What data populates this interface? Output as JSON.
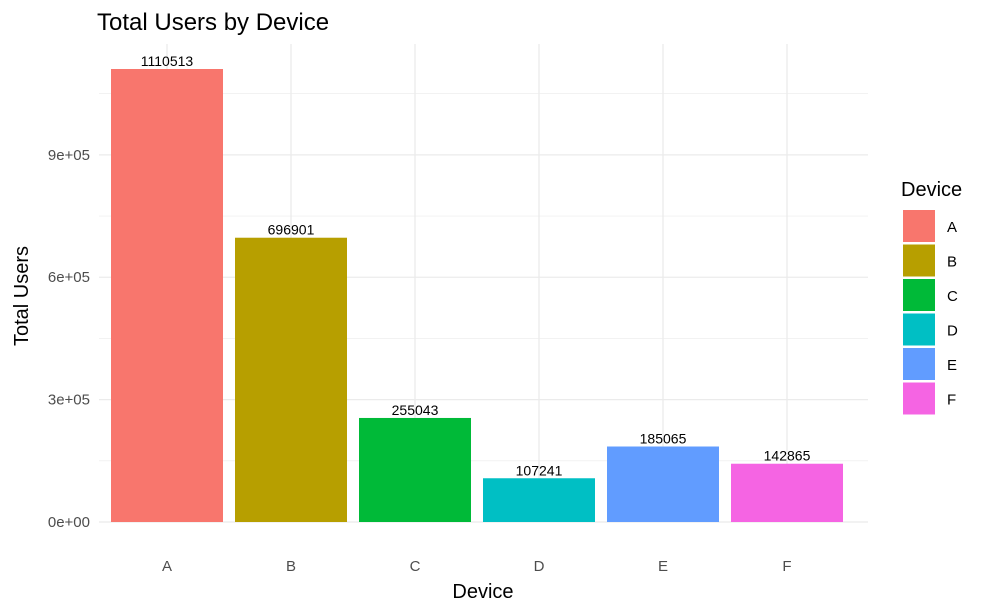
{
  "chart_data": {
    "type": "bar",
    "title": "Total Users by Device",
    "xlabel": "Device",
    "ylabel": "Total Users",
    "categories": [
      "A",
      "B",
      "C",
      "D",
      "E",
      "F"
    ],
    "values": [
      1110513,
      696901,
      255043,
      107241,
      185065,
      142865
    ],
    "data_labels": [
      "1110513",
      "696901",
      "255043",
      "107241",
      "185065",
      "142865"
    ],
    "colors": [
      "#F8766D",
      "#B79F00",
      "#00BA38",
      "#00BFC4",
      "#619CFF",
      "#F564E3"
    ],
    "y_ticks": [
      0,
      300000,
      600000,
      900000
    ],
    "y_tick_labels": [
      "0e+00",
      "3e+05",
      "6e+05",
      "9e+05"
    ],
    "ylim": [
      0,
      1110513
    ],
    "grid": true,
    "legend": {
      "title": "Device",
      "position": "right",
      "items": [
        "A",
        "B",
        "C",
        "D",
        "E",
        "F"
      ]
    }
  }
}
